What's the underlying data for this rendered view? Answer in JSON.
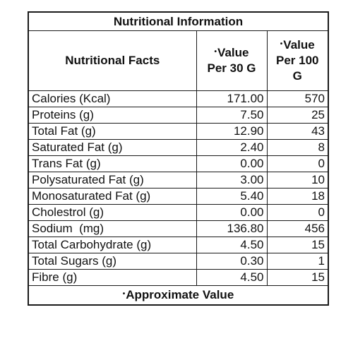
{
  "table": {
    "title": "Nutritional Information",
    "headers": {
      "facts": "Nutritional Facts",
      "marker": "•",
      "per30_line1": "Value",
      "per30_line2": "Per 30 G",
      "per100_line1": "Value",
      "per100_line2": "Per 100",
      "per100_line3": "G"
    },
    "rows": [
      {
        "label": "Calories (Kcal)",
        "per30": "171.00",
        "per100": "570"
      },
      {
        "label": "Proteins (g)",
        "per30": "7.50",
        "per100": "25"
      },
      {
        "label": "Total Fat (g)",
        "per30": "12.90",
        "per100": "43"
      },
      {
        "label": "Saturated Fat (g)",
        "per30": "2.40",
        "per100": "8"
      },
      {
        "label": "Trans Fat (g)",
        "per30": "0.00",
        "per100": "0"
      },
      {
        "label": "Polysaturated Fat (g)",
        "per30": "3.00",
        "per100": "10"
      },
      {
        "label": "Monosaturated Fat (g)",
        "per30": "5.40",
        "per100": "18"
      },
      {
        "label": "Cholestrol (g)",
        "per30": "0.00",
        "per100": "0"
      },
      {
        "label": "Sodium  (mg)",
        "per30": "136.80",
        "per100": "456"
      },
      {
        "label": "Total Carbohydrate (g)",
        "per30": "4.50",
        "per100": "15"
      },
      {
        "label": "Total Sugars (g)",
        "per30": "0.30",
        "per100": "1"
      },
      {
        "label": "Fibre (g)",
        "per30": "4.50",
        "per100": "15"
      }
    ],
    "footer": {
      "marker": "•",
      "text": "Approximate Value"
    }
  }
}
